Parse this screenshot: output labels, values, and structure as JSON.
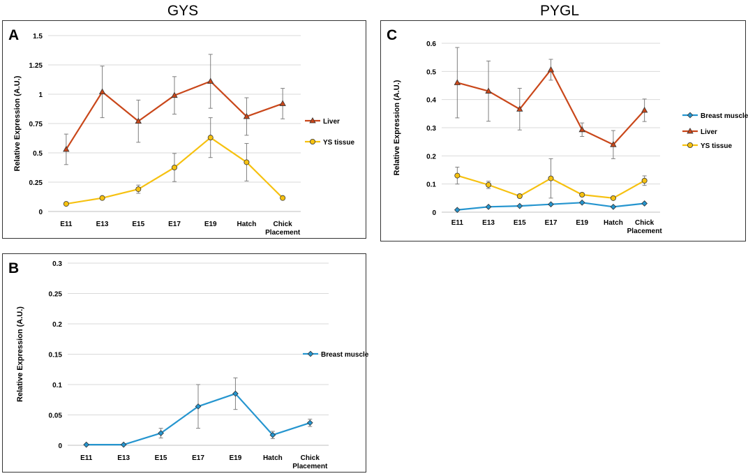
{
  "titles": {
    "left": "GYS",
    "right": "PYGL"
  },
  "colors": {
    "liver": "#C9471A",
    "ys": "#F6C110",
    "breast": "#2595CF",
    "grid": "#D9D9D9",
    "err": "#7F7F7F"
  },
  "chart_data": [
    {
      "id": "A",
      "type": "line",
      "panel_label": "A",
      "ylabel": "Relative Expression (A.U.)",
      "categories": [
        "E11",
        "E13",
        "E15",
        "E17",
        "E19",
        "Hatch",
        "Chick Placement"
      ],
      "ylim": [
        0,
        1.5
      ],
      "yticks": [
        0,
        0.25,
        0.5,
        0.75,
        1,
        1.25,
        1.5
      ],
      "ytick_labels": [
        "0",
        "0.25",
        "0.5",
        "0.75",
        "1",
        "1.25",
        "1.5"
      ],
      "legend_position": "right",
      "series": [
        {
          "name": "Liver",
          "key": "liver",
          "marker": "triangle",
          "values": [
            0.53,
            1.02,
            0.77,
            0.99,
            1.11,
            0.81,
            0.92
          ],
          "errors": [
            0.13,
            0.22,
            0.18,
            0.16,
            0.23,
            0.16,
            0.13
          ]
        },
        {
          "name": "YS tissue",
          "key": "ys",
          "marker": "circle",
          "values": [
            0.065,
            0.115,
            0.19,
            0.375,
            0.63,
            0.42,
            0.115
          ],
          "errors": [
            0,
            0,
            0.035,
            0.12,
            0.17,
            0.16,
            0
          ]
        }
      ]
    },
    {
      "id": "B",
      "type": "line",
      "panel_label": "B",
      "ylabel": "Relative Expression (A.U.)",
      "categories": [
        "E11",
        "E13",
        "E15",
        "E17",
        "E19",
        "Hatch",
        "Chick Placement"
      ],
      "ylim": [
        0,
        0.3
      ],
      "yticks": [
        0,
        0.05,
        0.1,
        0.15,
        0.2,
        0.25,
        0.3
      ],
      "ytick_labels": [
        "0",
        "0.05",
        "0.1",
        "0.15",
        "0.2",
        "0.25",
        "0.3"
      ],
      "legend_position": "right",
      "series": [
        {
          "name": "Breast muscle",
          "key": "breast",
          "marker": "diamond",
          "values": [
            0.001,
            0.001,
            0.02,
            0.064,
            0.085,
            0.017,
            0.037
          ],
          "errors": [
            0,
            0,
            0.008,
            0.036,
            0.026,
            0.006,
            0.006
          ]
        }
      ]
    },
    {
      "id": "C",
      "type": "line",
      "panel_label": "C",
      "ylabel": "Relative Expression (A.U.)",
      "categories": [
        "E11",
        "E13",
        "E15",
        "E17",
        "E19",
        "Hatch",
        "Chick Placement"
      ],
      "ylim": [
        0,
        0.6
      ],
      "yticks": [
        0,
        0.1,
        0.2,
        0.3,
        0.4,
        0.5,
        0.6
      ],
      "ytick_labels": [
        "0",
        "0.1",
        "0.2",
        "0.3",
        "0.4",
        "0.5",
        "0.6"
      ],
      "legend_position": "right",
      "series": [
        {
          "name": "Breast muscle",
          "key": "breast",
          "marker": "diamond",
          "values": [
            0.008,
            0.019,
            0.022,
            0.028,
            0.034,
            0.019,
            0.031
          ],
          "errors": [
            0,
            0,
            0,
            0,
            0,
            0,
            0
          ]
        },
        {
          "name": "Liver",
          "key": "liver",
          "marker": "triangle",
          "values": [
            0.46,
            0.43,
            0.366,
            0.506,
            0.293,
            0.24,
            0.362
          ],
          "errors": [
            0.125,
            0.107,
            0.074,
            0.037,
            0.024,
            0.05,
            0.04
          ]
        },
        {
          "name": "YS tissue",
          "key": "ys",
          "marker": "circle",
          "values": [
            0.13,
            0.097,
            0.057,
            0.12,
            0.062,
            0.05,
            0.112
          ],
          "errors": [
            0.03,
            0.013,
            0,
            0.07,
            0,
            0,
            0.017
          ]
        }
      ]
    }
  ]
}
